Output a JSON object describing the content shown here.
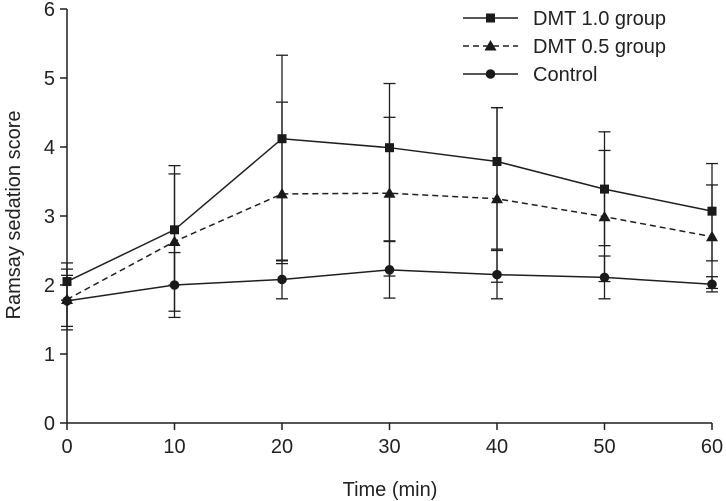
{
  "chart_data": {
    "type": "line",
    "title": "",
    "xlabel": "Time (min)",
    "ylabel": "Ramsay sedation score",
    "x": [
      0,
      10,
      20,
      30,
      40,
      50,
      60
    ],
    "xlim": [
      0,
      60
    ],
    "ylim": [
      0,
      6
    ],
    "xticks": [
      "0",
      "10",
      "20",
      "30",
      "40",
      "50",
      "60"
    ],
    "yticks": [
      "0",
      "1",
      "2",
      "3",
      "4",
      "5",
      "6"
    ],
    "grid": false,
    "legend_position": "top-right",
    "series": [
      {
        "name": "DMT 1.0 group",
        "marker": "square",
        "dash": "solid",
        "values": [
          2.05,
          2.8,
          4.12,
          3.99,
          3.79,
          3.39,
          3.07
        ],
        "err_low": [
          0.27,
          1.18,
          1.81,
          1.35,
          1.27,
          0.82,
          0.72
        ],
        "err_high": [
          0.27,
          0.93,
          1.21,
          0.93,
          0.78,
          0.83,
          0.69
        ]
      },
      {
        "name": "DMT 0.5 group",
        "marker": "triangle",
        "dash": "dashed",
        "values": [
          1.79,
          2.63,
          3.32,
          3.33,
          3.25,
          2.99,
          2.7
        ],
        "err_low": [
          0.44,
          0.63,
          0.97,
          1.2,
          1.21,
          0.94,
          0.75
        ],
        "err_high": [
          0.44,
          0.98,
          1.33,
          1.1,
          1.32,
          0.96,
          0.75
        ]
      },
      {
        "name": "Control",
        "marker": "circle",
        "dash": "solid",
        "values": [
          1.77,
          2.0,
          2.08,
          2.22,
          2.15,
          2.11,
          2.01
        ],
        "err_low": [
          0.37,
          0.47,
          0.28,
          0.41,
          0.35,
          0.31,
          0.11
        ],
        "err_high": [
          0.37,
          0.47,
          0.28,
          0.41,
          0.35,
          0.31,
          0.11
        ]
      }
    ]
  }
}
